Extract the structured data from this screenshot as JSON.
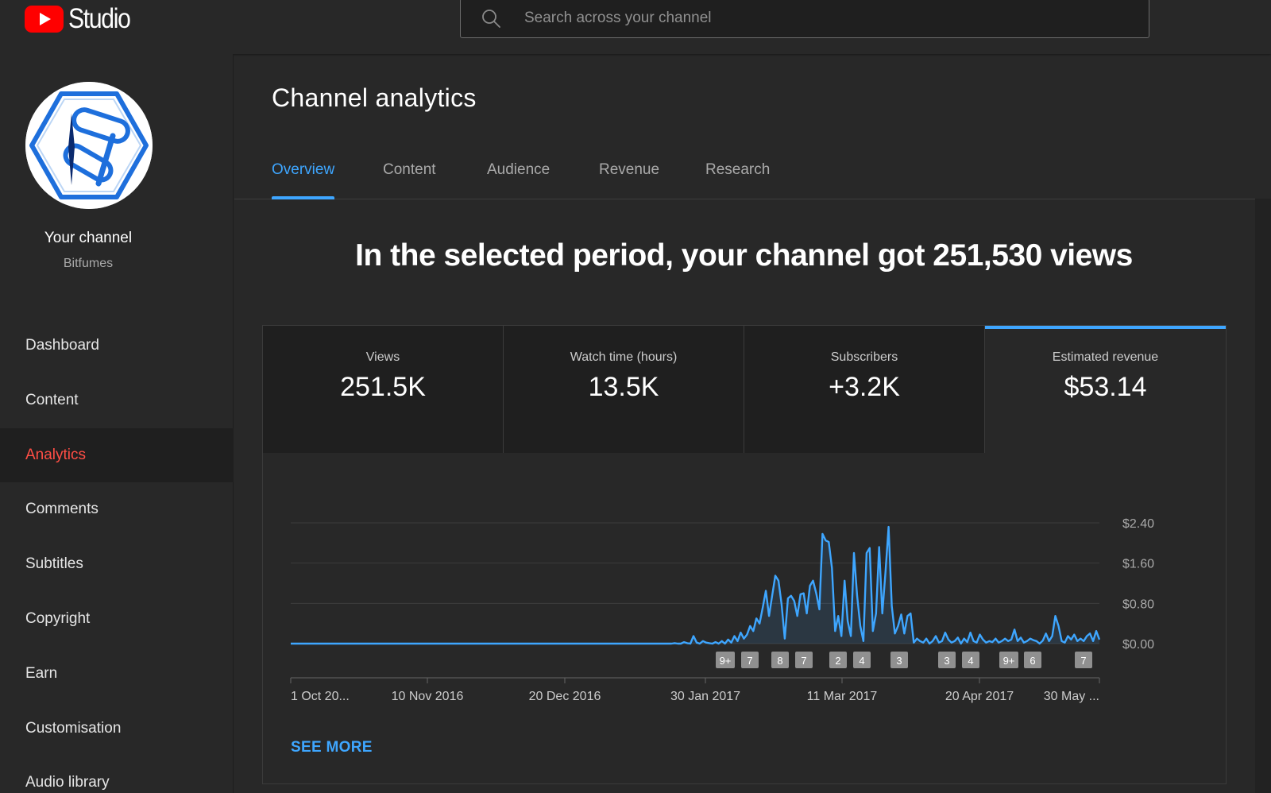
{
  "app": {
    "logo_text": "Studio"
  },
  "search": {
    "placeholder": "Search across your channel"
  },
  "sidebar": {
    "channel_title": "Your channel",
    "channel_name": "Bitfumes",
    "items": [
      {
        "label": "Dashboard",
        "icon": "dashboard-icon",
        "active": false
      },
      {
        "label": "Content",
        "icon": "video-icon",
        "active": false
      },
      {
        "label": "Analytics",
        "icon": "analytics-icon",
        "active": true
      },
      {
        "label": "Comments",
        "icon": "comment-icon",
        "active": false
      },
      {
        "label": "Subtitles",
        "icon": "subtitles-icon",
        "active": false
      },
      {
        "label": "Copyright",
        "icon": "copyright-icon",
        "active": false
      },
      {
        "label": "Earn",
        "icon": "dollar-icon",
        "active": false
      },
      {
        "label": "Customisation",
        "icon": "brush-icon",
        "active": false
      },
      {
        "label": "Audio library",
        "icon": "audio-icon",
        "active": false
      }
    ]
  },
  "main": {
    "title": "Channel analytics",
    "tabs": [
      {
        "label": "Overview",
        "active": true
      },
      {
        "label": "Content",
        "active": false
      },
      {
        "label": "Audience",
        "active": false
      },
      {
        "label": "Revenue",
        "active": false
      },
      {
        "label": "Research",
        "active": false
      }
    ],
    "headline": "In the selected period, your channel got 251,530 views",
    "metrics": [
      {
        "label": "Views",
        "value": "251.5K",
        "selected": false
      },
      {
        "label": "Watch time (hours)",
        "value": "13.5K",
        "selected": false
      },
      {
        "label": "Subscribers",
        "value": "+3.2K",
        "selected": false
      },
      {
        "label": "Estimated revenue",
        "value": "$53.14",
        "selected": true
      }
    ],
    "see_more": "SEE MORE"
  },
  "colors": {
    "accent": "#3ea6ff",
    "active_nav": "#ff4e45",
    "brand": "#ff0000",
    "line": "#3ea6ff"
  },
  "chart_data": {
    "type": "line",
    "ylabel": "",
    "ylim": [
      0,
      2.4
    ],
    "y_ticks": [
      "$2.40",
      "$1.60",
      "$0.80",
      "$0.00"
    ],
    "x_tick_labels": [
      "1 Oct 20...",
      "10 Nov 2016",
      "20 Dec 2016",
      "30 Jan 2017",
      "11 Mar 2017",
      "20 Apr 2017",
      "30 May ..."
    ],
    "markers": [
      "9+",
      "7",
      "8",
      "7",
      "2",
      "4",
      "3",
      "3",
      "4",
      "9+",
      "6",
      "7"
    ],
    "series": [
      {
        "values": [
          0,
          0,
          0,
          0,
          0,
          0,
          0,
          0,
          0,
          0,
          0,
          0,
          0,
          0,
          0,
          0,
          0,
          0,
          0,
          0,
          0,
          0,
          0,
          0,
          0,
          0,
          0,
          0,
          0,
          0,
          0,
          0,
          0,
          0,
          0,
          0,
          0,
          0,
          0,
          0,
          0,
          0,
          0,
          0,
          0,
          0,
          0,
          0,
          0,
          0,
          0,
          0,
          0,
          0,
          0,
          0,
          0,
          0,
          0,
          0,
          0,
          0,
          0,
          0,
          0,
          0,
          0,
          0,
          0,
          0,
          0,
          0,
          0,
          0,
          0,
          0,
          0,
          0,
          0,
          0,
          0,
          0,
          0,
          0,
          0,
          0,
          0,
          0,
          0,
          0,
          0,
          0,
          0,
          0,
          0,
          0,
          0,
          0,
          0,
          0,
          0,
          0,
          0,
          0,
          0,
          0,
          0,
          0,
          0,
          0,
          0,
          0,
          0,
          0,
          0,
          0,
          0,
          0,
          0,
          0,
          0,
          0,
          0.01,
          0,
          0,
          0.03,
          0.01,
          0,
          0.15,
          0.02,
          0,
          0.05,
          0.02,
          0.01,
          0,
          0.03,
          0,
          0.05,
          0,
          0.08,
          0.02,
          0.15,
          0.05,
          0.22,
          0.1,
          0.18,
          0.35,
          0.25,
          0.5,
          0.4,
          0.72,
          1.05,
          0.55,
          0.95,
          1.35,
          1.25,
          0.78,
          0.1,
          0.9,
          0.95,
          0.85,
          0.55,
          0.98,
          1.0,
          0.6,
          1.15,
          1.25,
          1.0,
          0.68,
          2.18,
          2.05,
          2.02,
          1.5,
          0.25,
          0.55,
          0.15,
          1.25,
          0.45,
          0.15,
          1.8,
          0.95,
          0.35,
          0.05,
          1.8,
          1.9,
          0.25,
          0.6,
          1.92,
          0.6,
          1.4,
          2.32,
          0.75,
          0.2,
          0.35,
          0.58,
          0.2,
          0.55,
          0.6,
          0.02,
          0.1,
          0.05,
          0.02,
          0.1,
          0.0,
          0.05,
          0.15,
          0.02,
          0.05,
          0.22,
          0.08,
          0.02,
          0.05,
          0.12,
          0.0,
          0.1,
          0.03,
          0.22,
          0.05,
          0.02,
          0.18,
          0.08,
          0.02,
          0.05,
          0.03,
          0.1,
          0.02,
          0.05,
          0.1,
          0.05,
          0.08,
          0.28,
          0.05,
          0.12,
          0.02,
          0.05,
          0.1,
          0.07,
          0.05,
          0.0,
          0.06,
          0.2,
          0.05,
          0.15,
          0.55,
          0.35,
          0.05,
          0.02,
          0.15,
          0.08,
          0.18,
          0.05,
          0.1,
          0.05,
          0.15,
          0.2,
          0.05,
          0.25,
          0.08
        ]
      }
    ]
  }
}
